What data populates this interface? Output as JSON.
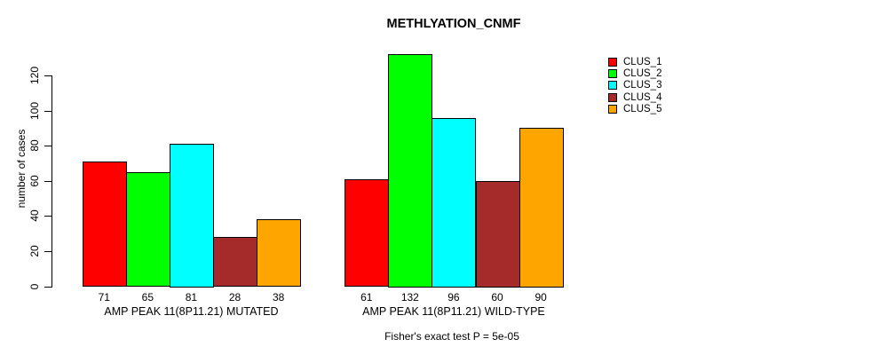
{
  "title": "METHLYATION_CNMF",
  "caption": "Fisher's exact test P = 5e-05",
  "chart_data": {
    "type": "bar",
    "title": "METHLYATION_CNMF",
    "xlabel": "",
    "ylabel": "number of cases",
    "ylim": [
      0,
      135
    ],
    "yticks": [
      0,
      20,
      40,
      60,
      80,
      100,
      120
    ],
    "grid": false,
    "legend_position": "right",
    "bar_value_labels": true,
    "categories": [
      "AMP PEAK 11(8P11.21) MUTATED",
      "AMP PEAK 11(8P11.21) WILD-TYPE"
    ],
    "series": [
      {
        "name": "CLUS_1",
        "color": "#FF0000",
        "values": [
          71,
          61
        ]
      },
      {
        "name": "CLUS_2",
        "color": "#00FF00",
        "values": [
          65,
          132
        ]
      },
      {
        "name": "CLUS_3",
        "color": "#00FFFF",
        "values": [
          81,
          96
        ]
      },
      {
        "name": "CLUS_4",
        "color": "#A52A2A",
        "values": [
          28,
          60
        ]
      },
      {
        "name": "CLUS_5",
        "color": "#FFA500",
        "values": [
          38,
          90
        ]
      }
    ],
    "annotation": "Fisher's exact test P = 5e-05"
  }
}
